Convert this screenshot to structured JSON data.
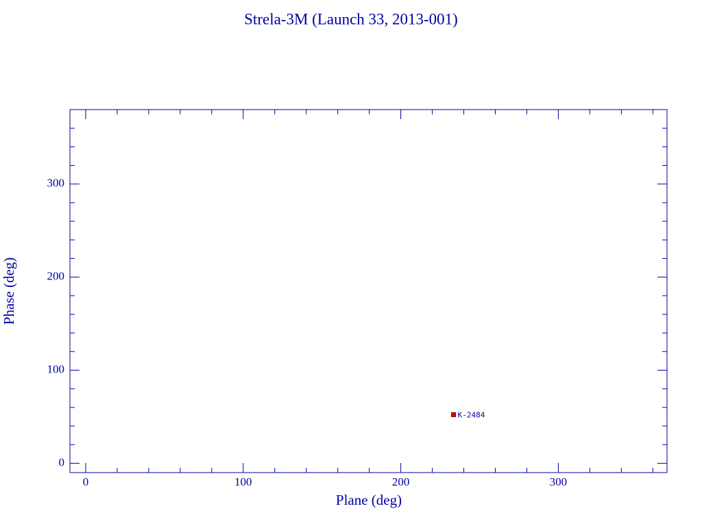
{
  "chart_data": {
    "type": "scatter",
    "title": "Strela-3M (Launch 33, 2013-001)",
    "x_label": "Plane (deg)",
    "y_label": "Phase (deg)",
    "series": [
      {
        "name": "K-2484",
        "color": "#dd0000",
        "x": [
          233.5
        ],
        "values": [
          52.2
        ]
      }
    ],
    "xlim": [
      -10,
      369
    ],
    "ylim": [
      -10,
      380
    ],
    "xticks": [
      0,
      100,
      200,
      300
    ],
    "yticks": [
      0,
      100,
      200,
      300
    ],
    "xminorticks": [
      20,
      40,
      60,
      80,
      120,
      140,
      160,
      180,
      220,
      240,
      260,
      280,
      320,
      340,
      360
    ],
    "yminorticks": [
      20,
      40,
      60,
      80,
      120,
      140,
      160,
      180,
      220,
      240,
      260,
      280,
      320,
      340,
      360
    ],
    "axis_color": "#0000a0"
  }
}
